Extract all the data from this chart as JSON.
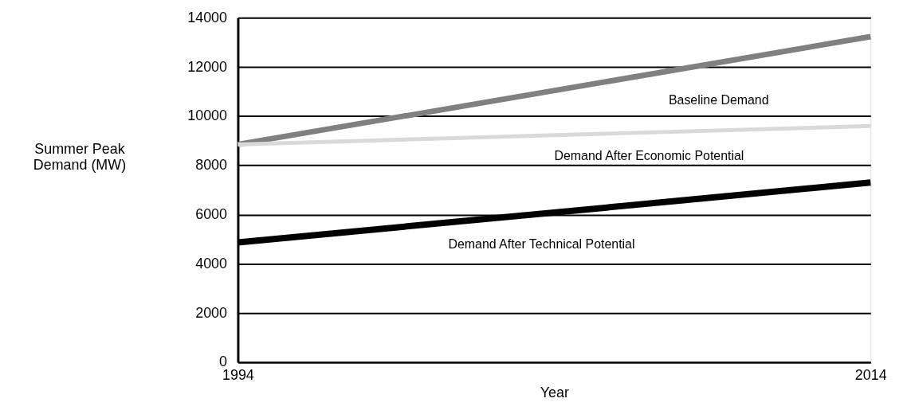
{
  "chart_data": {
    "type": "line",
    "xlabel": "Year",
    "ylabel": "Summer Peak Demand (MW)",
    "x": [
      1994,
      2014
    ],
    "xlim": [
      1994,
      2014
    ],
    "xticks": [
      1994,
      2014
    ],
    "ylim": [
      0,
      14000
    ],
    "yticks": [
      0,
      2000,
      4000,
      6000,
      8000,
      10000,
      12000,
      14000
    ],
    "grid": "y",
    "marker": "none",
    "line_style": "solid",
    "series": [
      {
        "name": "Baseline Demand",
        "color": "#808080",
        "values": [
          8850,
          13230
        ]
      },
      {
        "name": "Demand After Economic Potential",
        "color": "#d9d9d9",
        "values": [
          8850,
          9600
        ]
      },
      {
        "name": "Demand After Technical Potential",
        "color": "#000000",
        "values": [
          4870,
          7300
        ]
      }
    ]
  }
}
